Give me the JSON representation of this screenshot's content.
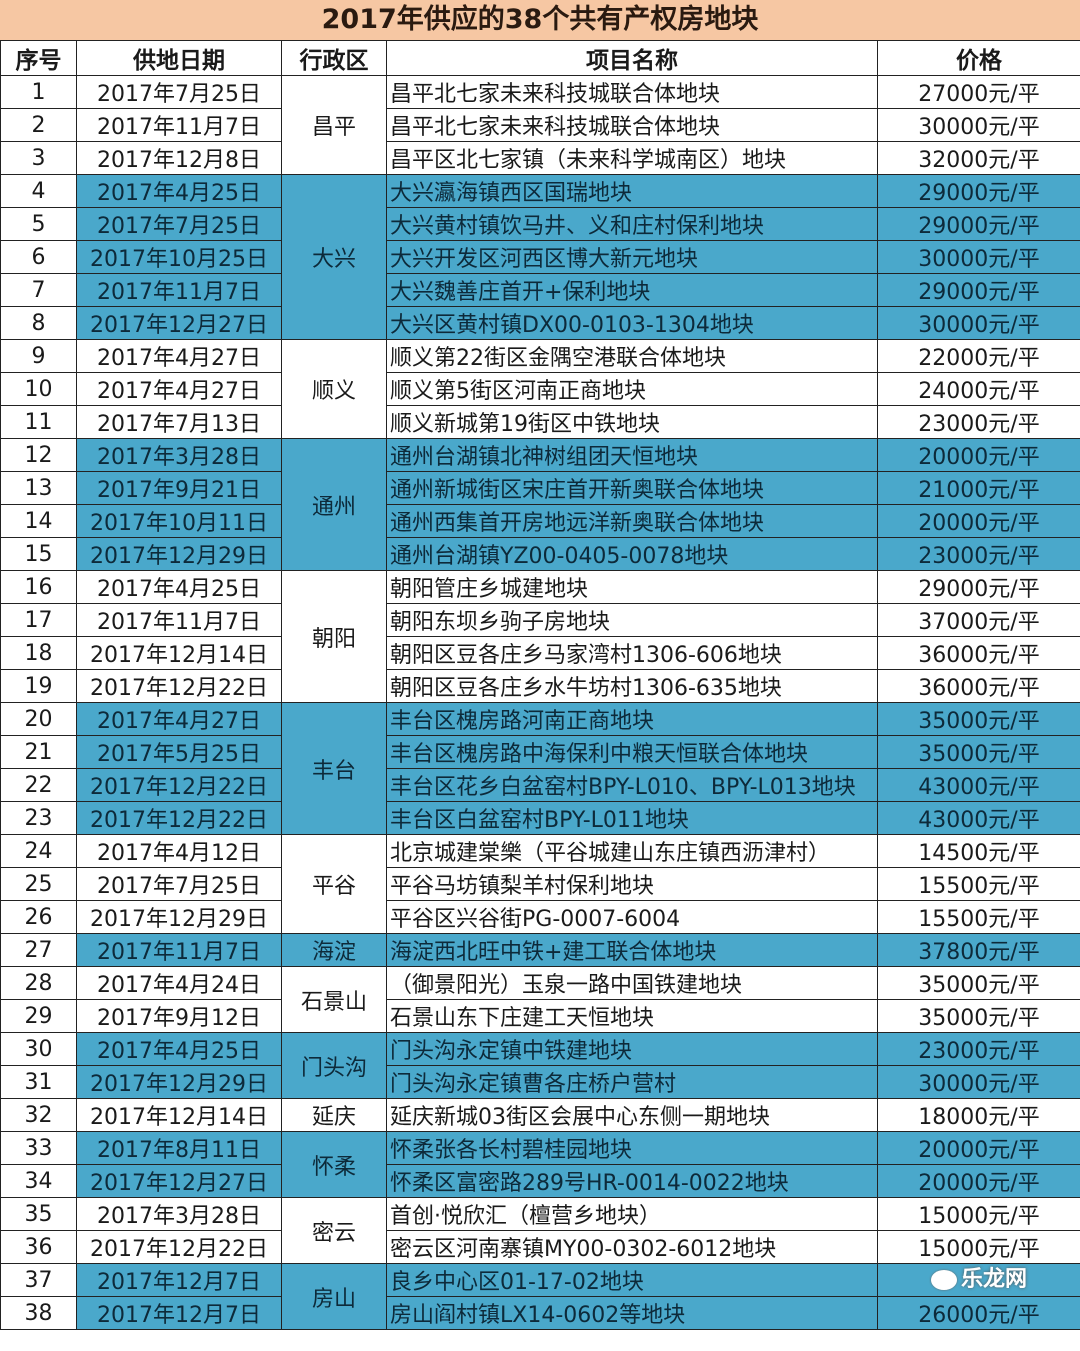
{
  "title": "2017年供应的38个共有产权房地块",
  "headers": [
    "序号",
    "供地日期",
    "行政区",
    "项目名称",
    "价格"
  ],
  "colors": {
    "highlight": "#4aa8cb",
    "title_bg": "#f6c7a3"
  },
  "groups": [
    {
      "district": "昌平",
      "highlight": false,
      "start": 1,
      "count": 3
    },
    {
      "district": "大兴",
      "highlight": true,
      "start": 4,
      "count": 5
    },
    {
      "district": "顺义",
      "highlight": false,
      "start": 9,
      "count": 3
    },
    {
      "district": "通州",
      "highlight": true,
      "start": 12,
      "count": 4
    },
    {
      "district": "朝阳",
      "highlight": false,
      "start": 16,
      "count": 4
    },
    {
      "district": "丰台",
      "highlight": true,
      "start": 20,
      "count": 4
    },
    {
      "district": "平谷",
      "highlight": false,
      "start": 24,
      "count": 3
    },
    {
      "district": "海淀",
      "highlight": true,
      "start": 27,
      "count": 1
    },
    {
      "district": "石景山",
      "highlight": false,
      "start": 28,
      "count": 2
    },
    {
      "district": "门头沟",
      "highlight": true,
      "start": 30,
      "count": 2
    },
    {
      "district": "延庆",
      "highlight": false,
      "start": 32,
      "count": 1
    },
    {
      "district": "怀柔",
      "highlight": true,
      "start": 33,
      "count": 2
    },
    {
      "district": "密云",
      "highlight": false,
      "start": 35,
      "count": 2
    },
    {
      "district": "房山",
      "highlight": true,
      "start": 37,
      "count": 2
    }
  ],
  "rows": [
    {
      "no": "1",
      "date": "2017年7月25日",
      "name": "昌平北七家未来科技城联合体地块",
      "price": "27000元/平"
    },
    {
      "no": "2",
      "date": "2017年11月7日",
      "name": "昌平北七家未来科技城联合体地块",
      "price": "30000元/平"
    },
    {
      "no": "3",
      "date": "2017年12月8日",
      "name": "昌平区北七家镇（未来科学城南区）地块",
      "price": "32000元/平"
    },
    {
      "no": "4",
      "date": "2017年4月25日",
      "name": "大兴瀛海镇西区国瑞地块",
      "price": "29000元/平"
    },
    {
      "no": "5",
      "date": "2017年7月25日",
      "name": "大兴黄村镇饮马井、义和庄村保利地块",
      "price": "29000元/平"
    },
    {
      "no": "6",
      "date": "2017年10月25日",
      "name": "大兴开发区河西区博大新元地块",
      "price": "30000元/平"
    },
    {
      "no": "7",
      "date": "2017年11月7日",
      "name": "大兴魏善庄首开+保利地块",
      "price": "29000元/平"
    },
    {
      "no": "8",
      "date": "2017年12月27日",
      "name": "大兴区黄村镇DX00-0103-1304地块",
      "price": "30000元/平"
    },
    {
      "no": "9",
      "date": "2017年4月27日",
      "name": "顺义第22街区金隅空港联合体地块",
      "price": "22000元/平"
    },
    {
      "no": "10",
      "date": "2017年4月27日",
      "name": "顺义第5街区河南正商地块",
      "price": "24000元/平"
    },
    {
      "no": "11",
      "date": "2017年7月13日",
      "name": "顺义新城第19街区中铁地块",
      "price": "23000元/平"
    },
    {
      "no": "12",
      "date": "2017年3月28日",
      "name": "通州台湖镇北神树组团天恒地块",
      "price": "20000元/平"
    },
    {
      "no": "13",
      "date": "2017年9月21日",
      "name": "通州新城街区宋庄首开新奥联合体地块",
      "price": "21000元/平"
    },
    {
      "no": "14",
      "date": "2017年10月11日",
      "name": "通州西集首开房地远洋新奥联合体地块",
      "price": "20000元/平"
    },
    {
      "no": "15",
      "date": "2017年12月29日",
      "name": "通州台湖镇YZ00-0405-0078地块",
      "price": "23000元/平"
    },
    {
      "no": "16",
      "date": "2017年4月25日",
      "name": "朝阳管庄乡城建地块",
      "price": "29000元/平"
    },
    {
      "no": "17",
      "date": "2017年11月7日",
      "name": "朝阳东坝乡驹子房地块",
      "price": "37000元/平"
    },
    {
      "no": "18",
      "date": "2017年12月14日",
      "name": "朝阳区豆各庄乡马家湾村1306-606地块",
      "price": "36000元/平"
    },
    {
      "no": "19",
      "date": "2017年12月22日",
      "name": "朝阳区豆各庄乡水牛坊村1306-635地块",
      "price": "36000元/平"
    },
    {
      "no": "20",
      "date": "2017年4月27日",
      "name": "丰台区槐房路河南正商地块",
      "price": "35000元/平"
    },
    {
      "no": "21",
      "date": "2017年5月25日",
      "name": "丰台区槐房路中海保利中粮天恒联合体地块",
      "price": "35000元/平"
    },
    {
      "no": "22",
      "date": "2017年12月22日",
      "name": "丰台区花乡白盆窑村BPY-L010、BPY-L013地块",
      "price": "43000元/平"
    },
    {
      "no": "23",
      "date": "2017年12月22日",
      "name": "丰台区白盆窑村BPY-L011地块",
      "price": "43000元/平"
    },
    {
      "no": "24",
      "date": "2017年4月12日",
      "name": "北京城建棠樂（平谷城建山东庄镇西沥津村）",
      "price": "14500元/平"
    },
    {
      "no": "25",
      "date": "2017年7月25日",
      "name": "平谷马坊镇梨羊村保利地块",
      "price": "15500元/平"
    },
    {
      "no": "26",
      "date": "2017年12月29日",
      "name": "平谷区兴谷街PG-0007-6004",
      "price": "15500元/平"
    },
    {
      "no": "27",
      "date": "2017年11月7日",
      "name": "海淀西北旺中铁+建工联合体地块",
      "price": "37800元/平"
    },
    {
      "no": "28",
      "date": "2017年4月24日",
      "name": "（御景阳光）玉泉一路中国铁建地块",
      "price": "35000元/平"
    },
    {
      "no": "29",
      "date": "2017年9月12日",
      "name": "石景山东下庄建工天恒地块",
      "price": "35000元/平"
    },
    {
      "no": "30",
      "date": "2017年4月25日",
      "name": "门头沟永定镇中铁建地块",
      "price": "23000元/平"
    },
    {
      "no": "31",
      "date": "2017年12月29日",
      "name": "门头沟永定镇曹各庄桥户营村",
      "price": "30000元/平"
    },
    {
      "no": "32",
      "date": "2017年12月14日",
      "name": "延庆新城03街区会展中心东侧一期地块",
      "price": "18000元/平"
    },
    {
      "no": "33",
      "date": "2017年8月11日",
      "name": "怀柔张各长村碧桂园地块",
      "price": "20000元/平"
    },
    {
      "no": "34",
      "date": "2017年12月27日",
      "name": "怀柔区富密路289号HR-0014-0022地块",
      "price": "20000元/平"
    },
    {
      "no": "35",
      "date": "2017年3月28日",
      "name": "首创·悦欣汇（檀营乡地块）",
      "price": "15000元/平"
    },
    {
      "no": "36",
      "date": "2017年12月22日",
      "name": "密云区河南寨镇MY00-0302-6012地块",
      "price": "15000元/平"
    },
    {
      "no": "37",
      "date": "2017年12月7日",
      "name": "良乡中心区01-17-02地块",
      "price": ""
    },
    {
      "no": "38",
      "date": "2017年12月7日",
      "name": "房山阎村镇LX14-0602等地块",
      "price": "26000元/平"
    }
  ],
  "watermark": {
    "logo_text": "乐龙网"
  }
}
